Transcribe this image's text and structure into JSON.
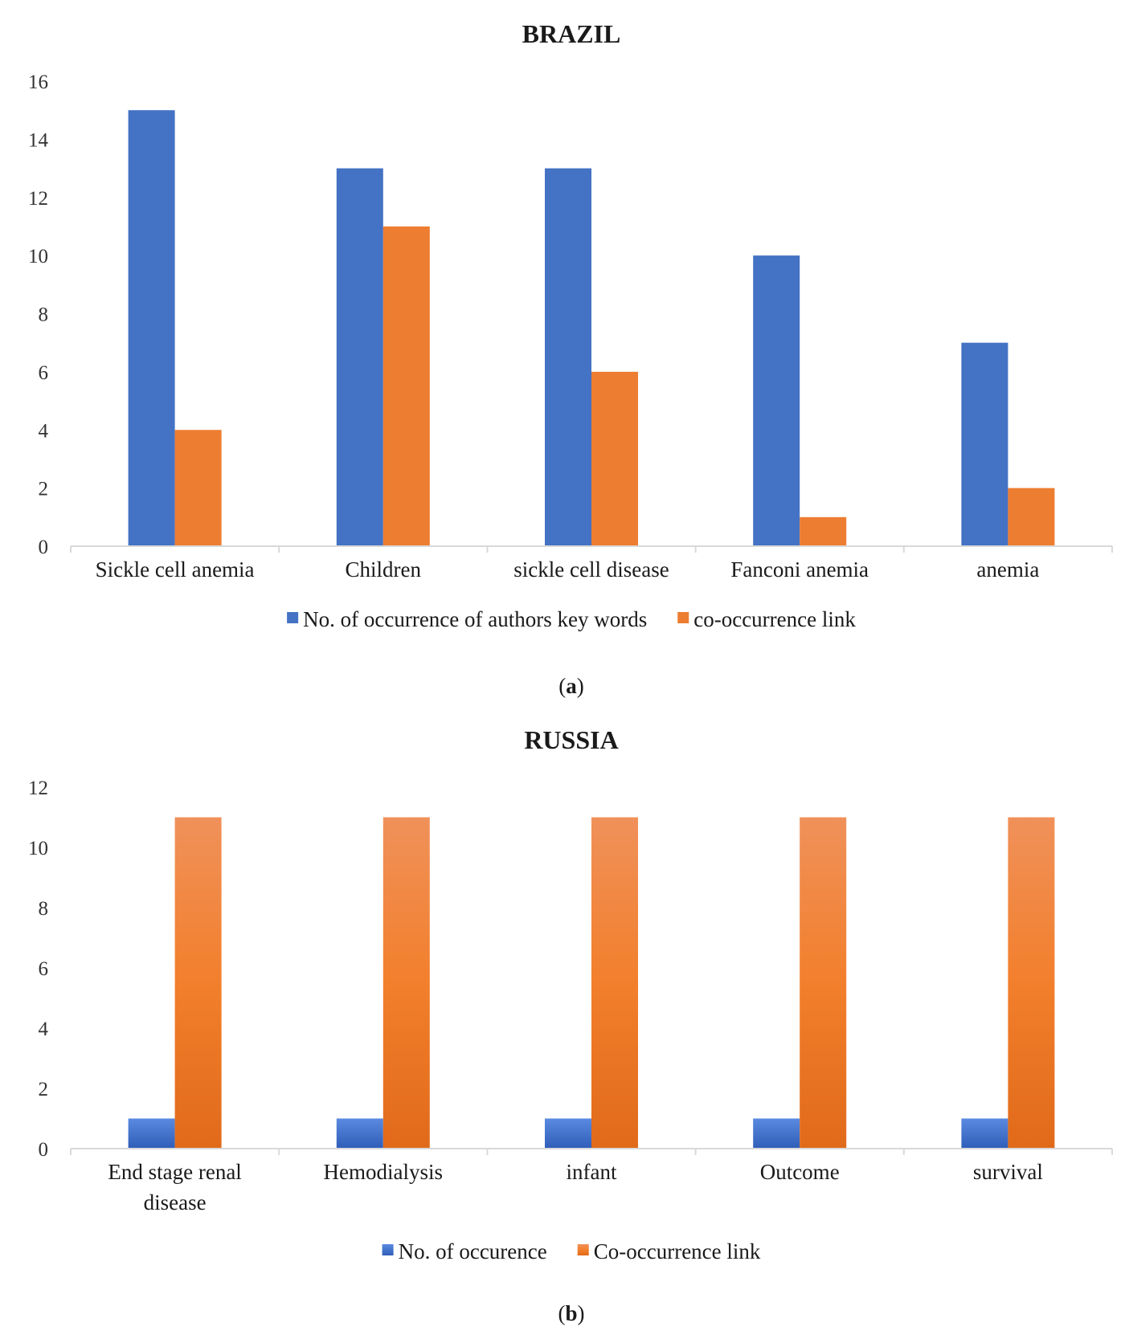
{
  "colors": {
    "blue": "#4472c4",
    "orange": "#ed7d31",
    "axis": "#d9d9d9"
  },
  "captions": [
    "a",
    "b"
  ],
  "chart_data": [
    {
      "type": "bar",
      "title": "BRAZIL",
      "categories": [
        [
          "Sickle cell anemia"
        ],
        [
          "Children"
        ],
        [
          "sickle cell disease"
        ],
        [
          "Fanconi anemia"
        ],
        [
          "anemia"
        ]
      ],
      "series": [
        {
          "name": "No. of occurrence of authors key words",
          "color": "#4472c4",
          "values": [
            15,
            13,
            13,
            10,
            7
          ]
        },
        {
          "name": "co-occurrence link",
          "color": "#ed7d31",
          "values": [
            4,
            11,
            6,
            1,
            2
          ]
        }
      ],
      "ylim": [
        0,
        16
      ],
      "yticks": [
        0,
        2,
        4,
        6,
        8,
        10,
        12,
        14,
        16
      ],
      "gradient": false,
      "legend": "bottom",
      "xlabel": "",
      "ylabel": ""
    },
    {
      "type": "bar",
      "title": "RUSSIA",
      "categories": [
        [
          "End stage renal",
          "disease"
        ],
        [
          "Hemodialysis"
        ],
        [
          "infant"
        ],
        [
          "Outcome"
        ],
        [
          "survival"
        ]
      ],
      "series": [
        {
          "name": "No. of occurence",
          "color": "#4472c4",
          "values": [
            1,
            1,
            1,
            1,
            1
          ]
        },
        {
          "name": "Co-occurrence link",
          "color": "#ed7d31",
          "values": [
            11,
            11,
            11,
            11,
            11
          ]
        }
      ],
      "ylim": [
        0,
        12
      ],
      "yticks": [
        0,
        2,
        4,
        6,
        8,
        10,
        12
      ],
      "gradient": true,
      "legend": "bottom",
      "xlabel": "",
      "ylabel": ""
    }
  ]
}
